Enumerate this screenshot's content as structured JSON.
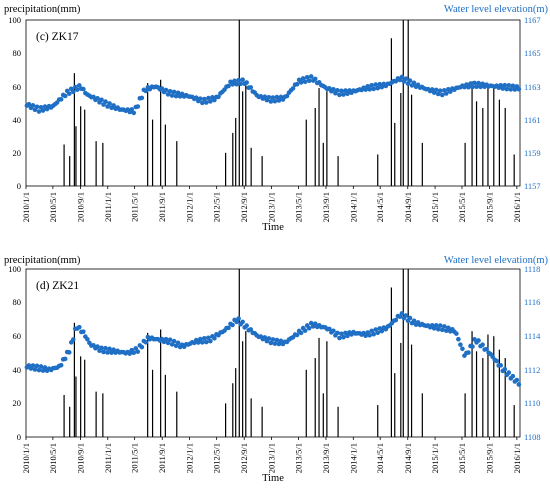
{
  "colors": {
    "bar": "#000000",
    "point": "#1f6fc5",
    "right_axis_text": "#1f6fc5",
    "axis": "#000000"
  },
  "chart_data": [
    {
      "type": "bar+scatter",
      "panel_label": "(c)  ZK17",
      "ylabel": "precipitation(mm)",
      "ylabel_right": "Water level elevation(m)",
      "xlabel": "Time",
      "ylim": [
        0,
        100
      ],
      "ylim_right": [
        1157,
        1167
      ],
      "y_ticks": [
        "0",
        "20",
        "40",
        "60",
        "80",
        "100"
      ],
      "y_right_ticks": [
        "1157",
        "1159",
        "1161",
        "1163",
        "1165",
        "1167"
      ],
      "x_range": [
        "2010-01-01",
        "2016-01-15"
      ],
      "x_tick_labels": [
        "2010/1/1",
        "2010/5/1",
        "2010/9/1",
        "2011/1/1",
        "2011/5/1",
        "2011/9/1",
        "2012/1/1",
        "2012/5/1",
        "2012/9/1",
        "2013/1/1",
        "2013/5/1",
        "2013/9/1",
        "2014/1/1",
        "2014/5/1",
        "2014/9/1",
        "2015/1/1",
        "2015/5/1",
        "2015/9/1",
        "2016/1/1"
      ],
      "precipitation_series": {
        "name": "",
        "points": [
          [
            "2010-06-20",
            25
          ],
          [
            "2010-07-15",
            18
          ],
          [
            "2010-08-05",
            68
          ],
          [
            "2010-08-12",
            36
          ],
          [
            "2010-09-02",
            48
          ],
          [
            "2010-09-20",
            46
          ],
          [
            "2010-11-10",
            27
          ],
          [
            "2010-12-10",
            26
          ],
          [
            "2011-06-28",
            62
          ],
          [
            "2011-07-20",
            40
          ],
          [
            "2011-08-25",
            64
          ],
          [
            "2011-09-15",
            37
          ],
          [
            "2011-11-05",
            27
          ],
          [
            "2012-06-10",
            20
          ],
          [
            "2012-07-12",
            32
          ],
          [
            "2012-07-25",
            41
          ],
          [
            "2012-08-10",
            100
          ],
          [
            "2012-08-25",
            57
          ],
          [
            "2012-09-08",
            63
          ],
          [
            "2012-10-02",
            23
          ],
          [
            "2012-11-20",
            18
          ],
          [
            "2013-06-05",
            40
          ],
          [
            "2013-07-15",
            47
          ],
          [
            "2013-08-01",
            59
          ],
          [
            "2013-08-20",
            26
          ],
          [
            "2013-09-05",
            57
          ],
          [
            "2013-10-25",
            18
          ],
          [
            "2014-04-20",
            19
          ],
          [
            "2014-06-20",
            89
          ],
          [
            "2014-07-05",
            38
          ],
          [
            "2014-08-01",
            56
          ],
          [
            "2014-08-12",
            100
          ],
          [
            "2014-09-03",
            100
          ],
          [
            "2014-09-18",
            55
          ],
          [
            "2014-11-05",
            26
          ],
          [
            "2015-05-15",
            26
          ],
          [
            "2015-06-15",
            63
          ],
          [
            "2015-07-05",
            51
          ],
          [
            "2015-08-02",
            47
          ],
          [
            "2015-08-25",
            61
          ],
          [
            "2015-09-20",
            60
          ],
          [
            "2015-10-15",
            52
          ],
          [
            "2015-11-10",
            47
          ],
          [
            "2015-12-20",
            19
          ]
        ]
      },
      "water_level_series": {
        "name": "",
        "points": [
          [
            "2010-01-05",
            1161.9
          ],
          [
            "2010-03-01",
            1161.6
          ],
          [
            "2010-05-01",
            1161.8
          ],
          [
            "2010-07-01",
            1162.6
          ],
          [
            "2010-09-01",
            1163.0
          ],
          [
            "2010-10-01",
            1162.5
          ],
          [
            "2011-01-01",
            1161.9
          ],
          [
            "2011-03-01",
            1161.6
          ],
          [
            "2011-05-01",
            1161.5
          ],
          [
            "2011-06-15",
            1162.8
          ],
          [
            "2011-08-01",
            1163.0
          ],
          [
            "2011-10-01",
            1162.6
          ],
          [
            "2012-01-01",
            1162.4
          ],
          [
            "2012-03-01",
            1162.1
          ],
          [
            "2012-05-01",
            1162.3
          ],
          [
            "2012-07-01",
            1163.2
          ],
          [
            "2012-09-01",
            1163.3
          ],
          [
            "2012-11-01",
            1162.4
          ],
          [
            "2013-01-01",
            1162.2
          ],
          [
            "2013-03-01",
            1162.3
          ],
          [
            "2013-05-01",
            1163.3
          ],
          [
            "2013-07-01",
            1163.5
          ],
          [
            "2013-09-01",
            1162.9
          ],
          [
            "2013-11-01",
            1162.6
          ],
          [
            "2014-01-01",
            1162.7
          ],
          [
            "2014-03-01",
            1162.9
          ],
          [
            "2014-06-01",
            1163.1
          ],
          [
            "2014-08-01",
            1163.5
          ],
          [
            "2014-10-01",
            1163.1
          ],
          [
            "2014-12-01",
            1162.8
          ],
          [
            "2015-02-01",
            1162.6
          ],
          [
            "2015-05-01",
            1163.0
          ],
          [
            "2015-07-01",
            1163.1
          ],
          [
            "2015-10-01",
            1163.0
          ],
          [
            "2016-01-10",
            1162.9
          ]
        ]
      }
    },
    {
      "type": "bar+scatter",
      "panel_label": "(d)  ZK21",
      "ylabel": "precipitation(mm)",
      "ylabel_right": "Water level elevation(m)",
      "xlabel": "Time",
      "ylim": [
        0,
        100
      ],
      "ylim_right": [
        1108,
        1118
      ],
      "y_ticks": [
        "0",
        "20",
        "40",
        "60",
        "80",
        "100"
      ],
      "y_right_ticks": [
        "1108",
        "1110",
        "1112",
        "1114",
        "1116",
        "1118"
      ],
      "x_range": [
        "2010-01-01",
        "2016-01-15"
      ],
      "x_tick_labels": [
        "2010/1/1",
        "2010/5/1",
        "2010/9/1",
        "2011/1/1",
        "2011/5/1",
        "2011/9/1",
        "2012/1/1",
        "2012/5/1",
        "2012/9/1",
        "2013/1/1",
        "2013/5/1",
        "2013/9/1",
        "2014/1/1",
        "2014/5/1",
        "2014/9/1",
        "2015/1/1",
        "2015/5/1",
        "2015/9/1",
        "2016/1/1"
      ],
      "precipitation_series": {
        "name": "",
        "points": [
          [
            "2010-06-20",
            25
          ],
          [
            "2010-07-15",
            18
          ],
          [
            "2010-08-05",
            68
          ],
          [
            "2010-08-12",
            36
          ],
          [
            "2010-09-02",
            48
          ],
          [
            "2010-09-20",
            46
          ],
          [
            "2010-11-10",
            27
          ],
          [
            "2010-12-10",
            26
          ],
          [
            "2011-06-28",
            62
          ],
          [
            "2011-07-20",
            40
          ],
          [
            "2011-08-25",
            64
          ],
          [
            "2011-09-15",
            37
          ],
          [
            "2011-11-05",
            27
          ],
          [
            "2012-06-10",
            20
          ],
          [
            "2012-07-12",
            32
          ],
          [
            "2012-07-25",
            41
          ],
          [
            "2012-08-10",
            100
          ],
          [
            "2012-08-25",
            57
          ],
          [
            "2012-09-08",
            63
          ],
          [
            "2012-10-02",
            23
          ],
          [
            "2012-11-20",
            18
          ],
          [
            "2013-06-05",
            40
          ],
          [
            "2013-07-15",
            47
          ],
          [
            "2013-08-01",
            59
          ],
          [
            "2013-08-20",
            26
          ],
          [
            "2013-09-05",
            57
          ],
          [
            "2013-10-25",
            18
          ],
          [
            "2014-04-20",
            19
          ],
          [
            "2014-06-20",
            89
          ],
          [
            "2014-07-05",
            38
          ],
          [
            "2014-08-01",
            56
          ],
          [
            "2014-08-12",
            100
          ],
          [
            "2014-09-03",
            100
          ],
          [
            "2014-09-18",
            55
          ],
          [
            "2014-11-05",
            26
          ],
          [
            "2015-05-15",
            26
          ],
          [
            "2015-06-15",
            63
          ],
          [
            "2015-07-05",
            51
          ],
          [
            "2015-08-02",
            47
          ],
          [
            "2015-08-25",
            61
          ],
          [
            "2015-09-20",
            60
          ],
          [
            "2015-10-15",
            52
          ],
          [
            "2015-11-10",
            47
          ],
          [
            "2015-12-20",
            19
          ]
        ]
      },
      "water_level_series": {
        "name": "",
        "points": [
          [
            "2010-01-05",
            1112.2
          ],
          [
            "2010-03-01",
            1112.1
          ],
          [
            "2010-04-15",
            1112.0
          ],
          [
            "2010-06-01",
            1112.2
          ],
          [
            "2010-07-15",
            1113.2
          ],
          [
            "2010-08-15",
            1114.6
          ],
          [
            "2010-09-15",
            1114.2
          ],
          [
            "2010-10-15",
            1113.5
          ],
          [
            "2010-12-01",
            1113.2
          ],
          [
            "2011-02-01",
            1113.1
          ],
          [
            "2011-04-01",
            1113.0
          ],
          [
            "2011-05-15",
            1113.2
          ],
          [
            "2011-07-01",
            1113.9
          ],
          [
            "2011-08-15",
            1113.8
          ],
          [
            "2011-10-01",
            1113.7
          ],
          [
            "2011-12-01",
            1113.4
          ],
          [
            "2012-02-01",
            1113.7
          ],
          [
            "2012-04-01",
            1113.8
          ],
          [
            "2012-06-01",
            1114.3
          ],
          [
            "2012-08-01",
            1115.0
          ],
          [
            "2012-09-15",
            1114.5
          ],
          [
            "2012-11-01",
            1114.0
          ],
          [
            "2013-01-01",
            1113.7
          ],
          [
            "2013-03-01",
            1113.6
          ],
          [
            "2013-05-01",
            1114.2
          ],
          [
            "2013-07-01",
            1114.7
          ],
          [
            "2013-09-01",
            1114.5
          ],
          [
            "2013-11-01",
            1114.0
          ],
          [
            "2014-01-01",
            1114.2
          ],
          [
            "2014-03-01",
            1114.1
          ],
          [
            "2014-06-01",
            1114.5
          ],
          [
            "2014-08-01",
            1115.3
          ],
          [
            "2014-10-01",
            1114.8
          ],
          [
            "2014-12-01",
            1114.6
          ],
          [
            "2015-02-01",
            1114.5
          ],
          [
            "2015-04-01",
            1114.3
          ],
          [
            "2015-05-15",
            1112.8
          ],
          [
            "2015-07-01",
            1113.8
          ],
          [
            "2015-09-01",
            1113.0
          ],
          [
            "2015-11-01",
            1112.0
          ],
          [
            "2016-01-10",
            1111.2
          ]
        ]
      }
    }
  ]
}
